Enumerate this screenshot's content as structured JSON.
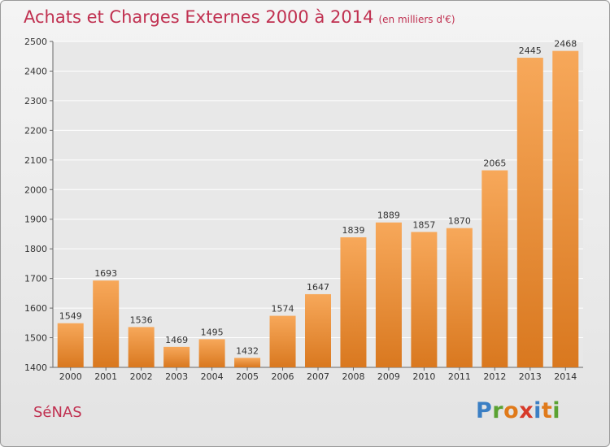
{
  "header": {
    "title": "Achats et Charges Externes 2000 à 2014",
    "unit": "(en milliers d'€)"
  },
  "footer": {
    "place": "SéNAS",
    "logo": {
      "text": "Proxiti",
      "letter_colors": [
        "#3b7fc4",
        "#5aa232",
        "#e07a1a",
        "#d73a2a",
        "#3b7fc4",
        "#e07a1a",
        "#5aa232"
      ]
    }
  },
  "chart_data": {
    "type": "bar",
    "title": "Achats et Charges Externes 2000 à 2014",
    "subtitle": "(en milliers d'€)",
    "xlabel": "",
    "ylabel": "",
    "categories": [
      "2000",
      "2001",
      "2002",
      "2003",
      "2004",
      "2005",
      "2006",
      "2007",
      "2008",
      "2009",
      "2010",
      "2011",
      "2012",
      "2013",
      "2014"
    ],
    "values": [
      1549,
      1693,
      1536,
      1469,
      1495,
      1432,
      1574,
      1647,
      1839,
      1889,
      1857,
      1870,
      2065,
      2445,
      2468
    ],
    "ylim": [
      1400,
      2500
    ],
    "yticks": [
      1400,
      1500,
      1600,
      1700,
      1800,
      1900,
      2000,
      2100,
      2200,
      2300,
      2400,
      2500
    ],
    "grid": true,
    "data_labels": true,
    "colors": {
      "bar_light": "#f7a85a",
      "bar_dark": "#d9781f",
      "grid": "#ffffff",
      "plot_bg": "#e8e8e8"
    }
  }
}
